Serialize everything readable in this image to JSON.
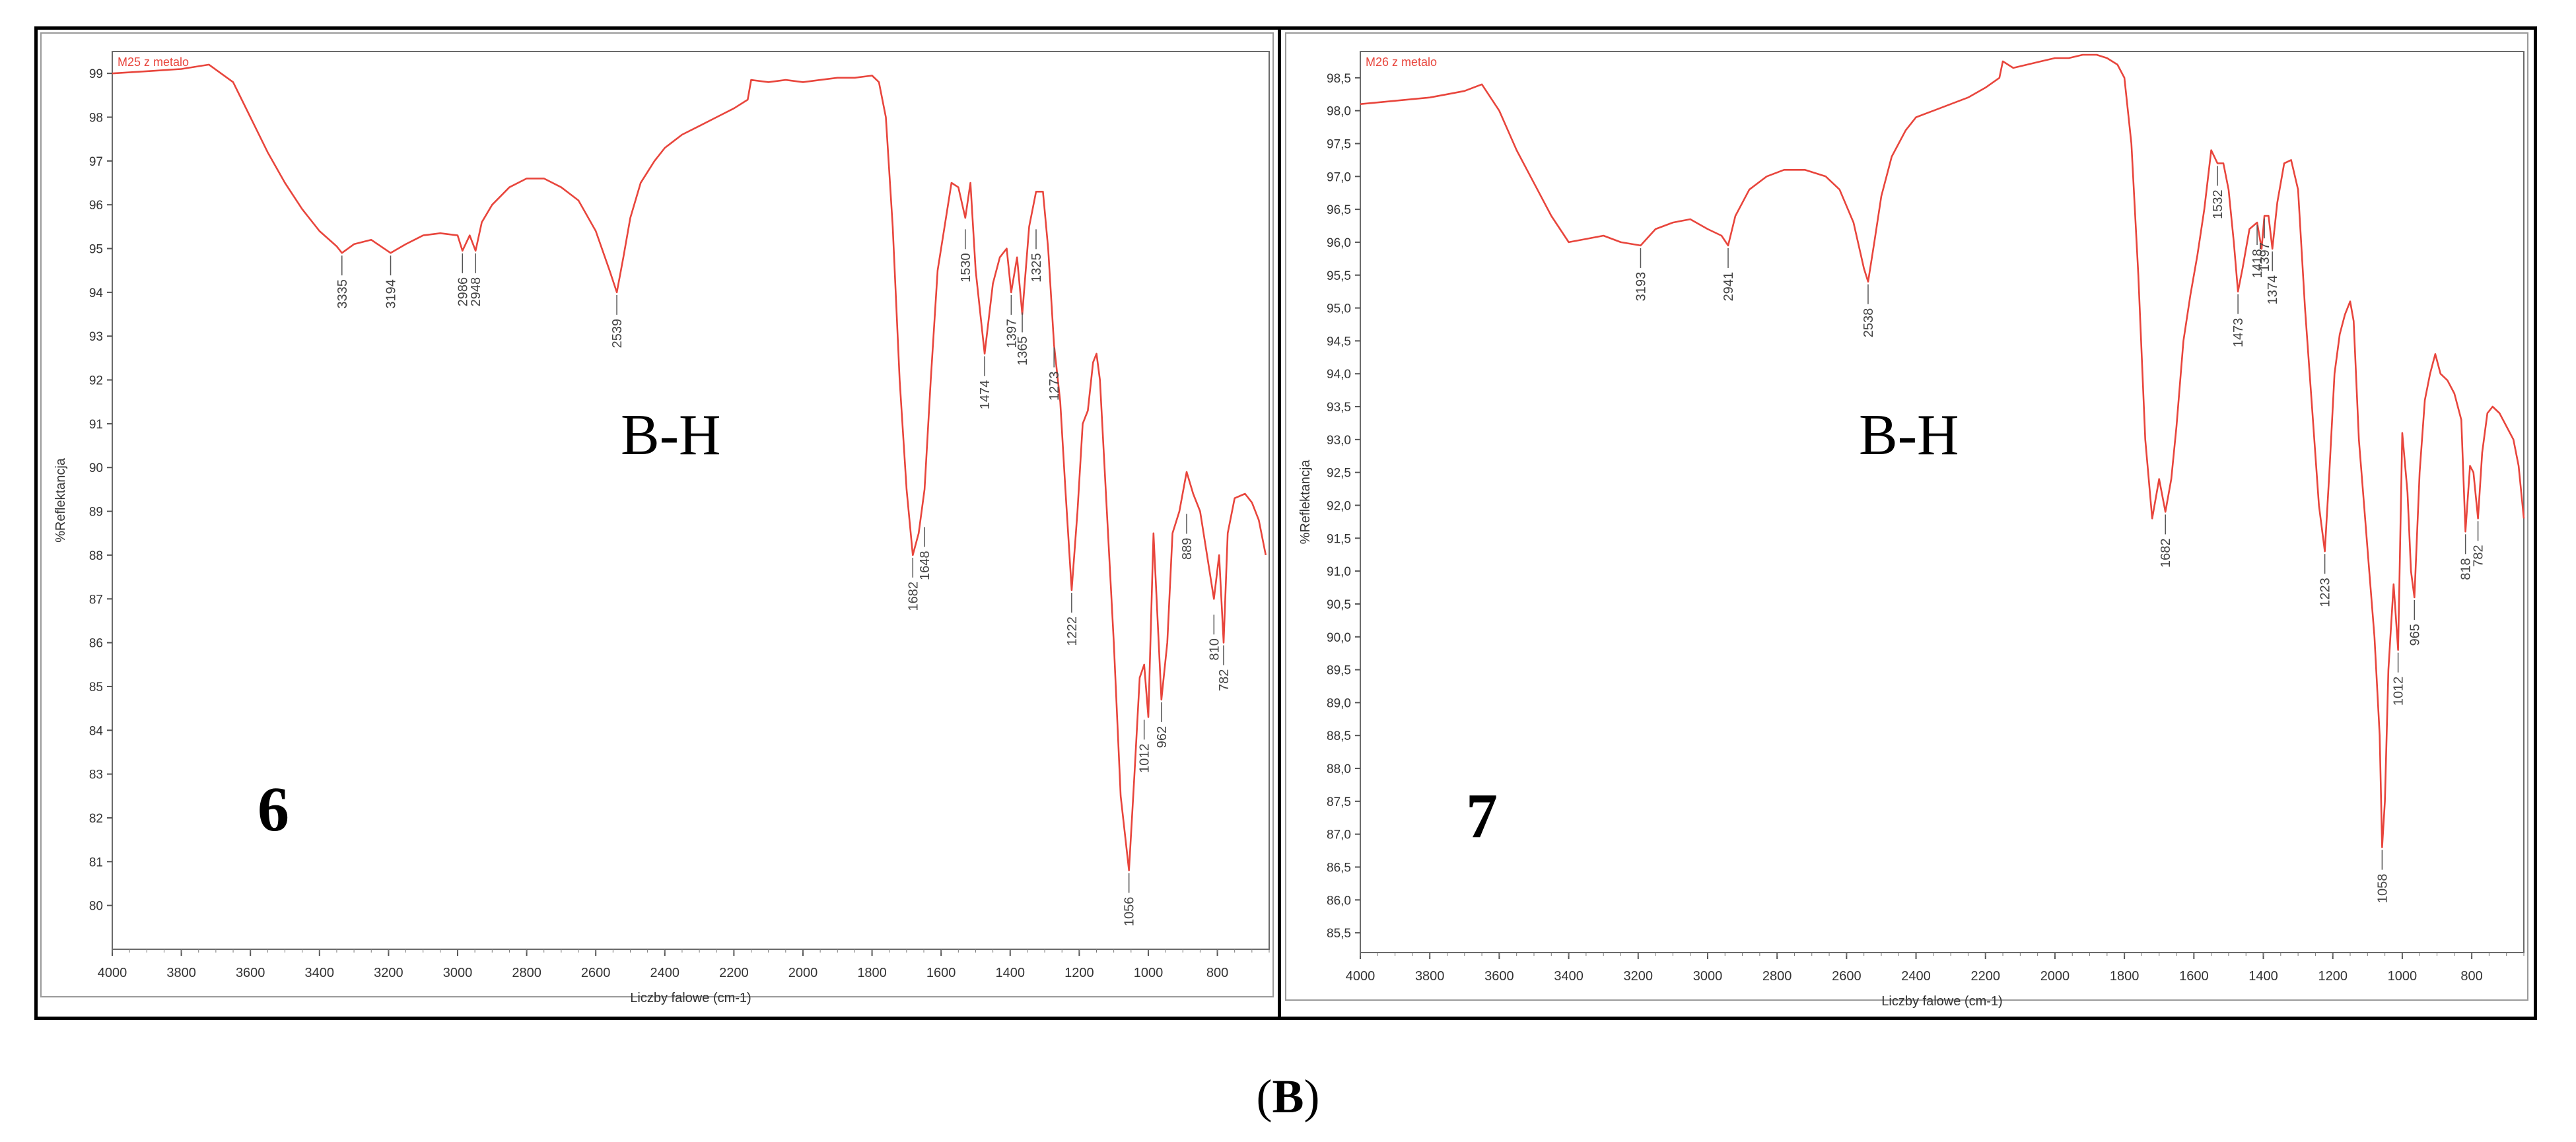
{
  "caption": {
    "open": "(",
    "letter": "B",
    "close": ")"
  },
  "chart_data": [
    {
      "type": "line",
      "panel_number": "6",
      "annotation_text": "B-H",
      "series_label": "M25 z metalo",
      "xlabel": "Liczby falowe (cm-1)",
      "ylabel": "%Reflektancja",
      "xlim": [
        4000,
        650
      ],
      "ylim": [
        79,
        99.5
      ],
      "x_ticks": [
        4000,
        3800,
        3600,
        3400,
        3200,
        3000,
        2800,
        2600,
        2400,
        2200,
        2000,
        1800,
        1600,
        1400,
        1200,
        1000,
        800
      ],
      "y_ticks": [
        80,
        81,
        82,
        83,
        84,
        85,
        86,
        87,
        88,
        89,
        90,
        91,
        92,
        93,
        94,
        95,
        96,
        97,
        98,
        99
      ],
      "line_color": "#e8453c",
      "x": [
        4000,
        3900,
        3800,
        3720,
        3650,
        3600,
        3550,
        3500,
        3450,
        3400,
        3350,
        3335,
        3300,
        3250,
        3194,
        3150,
        3100,
        3050,
        3000,
        2986,
        2965,
        2948,
        2930,
        2900,
        2850,
        2800,
        2750,
        2700,
        2650,
        2600,
        2560,
        2539,
        2520,
        2500,
        2470,
        2430,
        2400,
        2350,
        2300,
        2250,
        2200,
        2160,
        2150,
        2100,
        2050,
        2000,
        1950,
        1900,
        1850,
        1800,
        1780,
        1760,
        1740,
        1720,
        1700,
        1682,
        1665,
        1648,
        1630,
        1610,
        1590,
        1570,
        1550,
        1530,
        1515,
        1500,
        1474,
        1450,
        1430,
        1410,
        1397,
        1380,
        1365,
        1345,
        1325,
        1305,
        1290,
        1273,
        1255,
        1240,
        1222,
        1205,
        1190,
        1175,
        1160,
        1150,
        1140,
        1120,
        1100,
        1080,
        1056,
        1040,
        1025,
        1012,
        1000,
        985,
        962,
        945,
        930,
        910,
        889,
        870,
        850,
        830,
        810,
        795,
        782,
        770,
        750,
        720,
        700,
        680,
        660
      ],
      "y": [
        99,
        99.05,
        99.1,
        99.2,
        98.8,
        98.0,
        97.2,
        96.5,
        95.9,
        95.4,
        95.05,
        94.9,
        95.1,
        95.2,
        94.9,
        95.1,
        95.3,
        95.35,
        95.3,
        94.95,
        95.3,
        94.95,
        95.6,
        96.0,
        96.4,
        96.6,
        96.6,
        96.4,
        96.1,
        95.4,
        94.5,
        94.0,
        94.8,
        95.7,
        96.5,
        97.0,
        97.3,
        97.6,
        97.8,
        98.0,
        98.2,
        98.4,
        98.85,
        98.8,
        98.85,
        98.8,
        98.85,
        98.9,
        98.9,
        98.95,
        98.8,
        98.0,
        95.5,
        92.0,
        89.5,
        88.0,
        88.5,
        89.5,
        92.0,
        94.5,
        95.5,
        96.5,
        96.4,
        95.7,
        96.5,
        94.5,
        92.6,
        94.2,
        94.8,
        95.0,
        94.0,
        94.8,
        93.5,
        95.5,
        96.3,
        96.3,
        95.0,
        92.8,
        91.5,
        89.5,
        87.2,
        89.0,
        91.0,
        91.3,
        92.4,
        92.6,
        92.0,
        89.0,
        86.0,
        82.5,
        80.8,
        83.0,
        85.2,
        85.5,
        84.3,
        88.5,
        84.7,
        86.0,
        88.5,
        89.0,
        89.9,
        89.4,
        89.0,
        88.0,
        87.0,
        88.0,
        86.0,
        88.5,
        89.3,
        89.4,
        89.2,
        88.8,
        88.0
      ],
      "peaks": [
        {
          "x": 3335,
          "y": 94.9,
          "label": "3335"
        },
        {
          "x": 3194,
          "y": 94.9,
          "label": "3194"
        },
        {
          "x": 2986,
          "y": 94.95,
          "label": "2986"
        },
        {
          "x": 2948,
          "y": 94.95,
          "label": "2948"
        },
        {
          "x": 2539,
          "y": 94.0,
          "label": "2539"
        },
        {
          "x": 1682,
          "y": 88.0,
          "label": "1682"
        },
        {
          "x": 1648,
          "y": 88.7,
          "label": "1648"
        },
        {
          "x": 1530,
          "y": 95.5,
          "label": "1530"
        },
        {
          "x": 1474,
          "y": 92.6,
          "label": "1474"
        },
        {
          "x": 1397,
          "y": 94.0,
          "label": "1397"
        },
        {
          "x": 1365,
          "y": 93.6,
          "label": "1365"
        },
        {
          "x": 1325,
          "y": 95.5,
          "label": "1325"
        },
        {
          "x": 1273,
          "y": 92.8,
          "label": "1273"
        },
        {
          "x": 1222,
          "y": 87.2,
          "label": "1222"
        },
        {
          "x": 1056,
          "y": 80.8,
          "label": "1056"
        },
        {
          "x": 1012,
          "y": 84.3,
          "label": "1012"
        },
        {
          "x": 962,
          "y": 84.7,
          "label": "962"
        },
        {
          "x": 889,
          "y": 89.0,
          "label": "889"
        },
        {
          "x": 810,
          "y": 86.7,
          "label": "810"
        },
        {
          "x": 782,
          "y": 86.0,
          "label": "782"
        }
      ]
    },
    {
      "type": "line",
      "panel_number": "7",
      "annotation_text": "B-H",
      "series_label": "M26 z metalo",
      "xlabel": "Liczby falowe (cm-1)",
      "ylabel": "%Reflektancja",
      "xlim": [
        4000,
        650
      ],
      "ylim": [
        85.2,
        98.9
      ],
      "x_ticks": [
        4000,
        3800,
        3600,
        3400,
        3200,
        3000,
        2800,
        2600,
        2400,
        2200,
        2000,
        1800,
        1600,
        1400,
        1200,
        1000,
        800
      ],
      "y_ticks": [
        85.5,
        86.0,
        86.5,
        87.0,
        87.5,
        88.0,
        88.5,
        89.0,
        89.5,
        90.0,
        90.5,
        91.0,
        91.5,
        92.0,
        92.5,
        93.0,
        93.5,
        94.0,
        94.5,
        95.0,
        95.5,
        96.0,
        96.5,
        97.0,
        97.5,
        98.0,
        98.5
      ],
      "y_tick_labels": [
        "85,5",
        "86,0",
        "86,5",
        "87,0",
        "87,5",
        "88,0",
        "88,5",
        "89,0",
        "89,5",
        "90,0",
        "90,5",
        "91,0",
        "91,5",
        "92,0",
        "92,5",
        "93,0",
        "93,5",
        "94,0",
        "94,5",
        "95,0",
        "95,5",
        "96,0",
        "96,5",
        "97,0",
        "97,5",
        "98,0",
        "98,5"
      ],
      "line_color": "#e8453c",
      "x": [
        4000,
        3900,
        3800,
        3750,
        3700,
        3650,
        3600,
        3550,
        3500,
        3450,
        3400,
        3350,
        3300,
        3250,
        3193,
        3150,
        3100,
        3050,
        3000,
        2960,
        2941,
        2920,
        2880,
        2830,
        2780,
        2720,
        2660,
        2620,
        2580,
        2550,
        2538,
        2520,
        2500,
        2470,
        2430,
        2400,
        2350,
        2300,
        2250,
        2200,
        2160,
        2150,
        2120,
        2080,
        2040,
        2000,
        1960,
        1920,
        1880,
        1850,
        1820,
        1800,
        1780,
        1760,
        1740,
        1720,
        1700,
        1682,
        1665,
        1650,
        1630,
        1610,
        1590,
        1570,
        1550,
        1532,
        1515,
        1500,
        1485,
        1473,
        1460,
        1440,
        1418,
        1405,
        1397,
        1385,
        1374,
        1360,
        1340,
        1320,
        1300,
        1280,
        1260,
        1240,
        1223,
        1210,
        1195,
        1180,
        1165,
        1150,
        1140,
        1125,
        1110,
        1095,
        1080,
        1065,
        1058,
        1050,
        1040,
        1025,
        1012,
        1000,
        985,
        975,
        965,
        950,
        935,
        920,
        905,
        890,
        870,
        850,
        830,
        818,
        805,
        795,
        782,
        770,
        755,
        740,
        720,
        700,
        680,
        665,
        650
      ],
      "y": [
        98.1,
        98.15,
        98.2,
        98.25,
        98.3,
        98.4,
        98.0,
        97.4,
        96.9,
        96.4,
        96.0,
        96.05,
        96.1,
        96.0,
        95.95,
        96.2,
        96.3,
        96.35,
        96.2,
        96.1,
        95.95,
        96.4,
        96.8,
        97.0,
        97.1,
        97.1,
        97.0,
        96.8,
        96.3,
        95.6,
        95.4,
        96.0,
        96.7,
        97.3,
        97.7,
        97.9,
        98.0,
        98.1,
        98.2,
        98.35,
        98.5,
        98.75,
        98.65,
        98.7,
        98.75,
        98.8,
        98.8,
        98.85,
        98.85,
        98.8,
        98.7,
        98.5,
        97.5,
        95.5,
        93.0,
        91.8,
        92.4,
        91.9,
        92.4,
        93.2,
        94.5,
        95.2,
        95.8,
        96.5,
        97.4,
        97.2,
        97.2,
        96.8,
        96.0,
        95.25,
        95.6,
        96.2,
        96.3,
        95.9,
        96.4,
        96.4,
        95.9,
        96.6,
        97.2,
        97.25,
        96.8,
        95.0,
        93.5,
        92.0,
        91.3,
        92.5,
        94.0,
        94.6,
        94.9,
        95.1,
        94.8,
        93.0,
        92.0,
        91.0,
        90.0,
        88.5,
        86.8,
        87.5,
        89.5,
        90.8,
        89.8,
        93.1,
        92.2,
        91.0,
        90.6,
        92.5,
        93.6,
        94.0,
        94.3,
        94.0,
        93.9,
        93.7,
        93.3,
        91.6,
        92.6,
        92.5,
        91.8,
        92.8,
        93.4,
        93.5,
        93.4,
        93.2,
        93.0,
        92.6,
        91.8
      ],
      "peaks": [
        {
          "x": 3193,
          "y": 95.95,
          "label": "3193"
        },
        {
          "x": 2941,
          "y": 95.95,
          "label": "2941"
        },
        {
          "x": 2538,
          "y": 95.4,
          "label": "2538"
        },
        {
          "x": 1682,
          "y": 91.9,
          "label": "1682"
        },
        {
          "x": 1532,
          "y": 97.2,
          "label": "1532"
        },
        {
          "x": 1473,
          "y": 95.25,
          "label": "1473"
        },
        {
          "x": 1418,
          "y": 96.3,
          "label": "1418"
        },
        {
          "x": 1397,
          "y": 96.4,
          "label": "1397"
        },
        {
          "x": 1374,
          "y": 95.9,
          "label": "1374"
        },
        {
          "x": 1223,
          "y": 91.3,
          "label": "1223"
        },
        {
          "x": 1058,
          "y": 86.8,
          "label": "1058"
        },
        {
          "x": 1012,
          "y": 89.8,
          "label": "1012"
        },
        {
          "x": 965,
          "y": 90.6,
          "label": "965"
        },
        {
          "x": 818,
          "y": 91.6,
          "label": "818"
        },
        {
          "x": 782,
          "y": 91.8,
          "label": "782"
        }
      ]
    }
  ]
}
